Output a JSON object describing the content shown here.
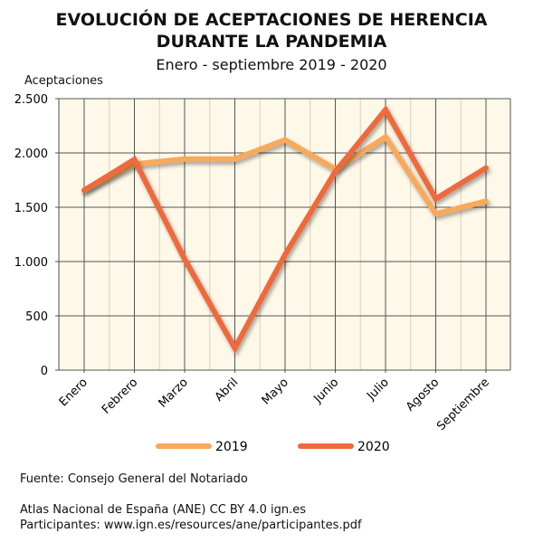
{
  "chart_data": {
    "type": "line",
    "title": "EVOLUCIÓN DE ACEPTACIONES DE HERENCIA DURANTE LA PANDEMIA",
    "title_lines": [
      "EVOLUCIÓN DE ACEPTACIONES DE HERENCIA",
      "DURANTE LA PANDEMIA"
    ],
    "subtitle": "Enero - septiembre 2019 - 2020",
    "ylabel": "Aceptaciones",
    "xlabel": "",
    "categories": [
      "Enero",
      "Febrero",
      "Marzo",
      "Abril",
      "Mayo",
      "Junio",
      "Julio",
      "Agosto",
      "Septiembre"
    ],
    "ylim": [
      0,
      2500
    ],
    "yticks": [
      0,
      500,
      1000,
      1500,
      2000,
      2500
    ],
    "ytick_labels": [
      "0",
      "500",
      "1.000",
      "1.500",
      "2.000",
      "2.500"
    ],
    "grid": true,
    "legend_position": "bottom",
    "background_color": "#fef8e8",
    "series": [
      {
        "name": "2019",
        "color": "#f8a95a",
        "values": [
          1660,
          1897,
          1944,
          1944,
          2120,
          1850,
          2147,
          1439,
          1556
        ]
      },
      {
        "name": "2020",
        "color": "#ee6a3c",
        "values": [
          1656,
          1939,
          1022,
          203,
          1064,
          1828,
          2397,
          1578,
          1861
        ]
      }
    ]
  },
  "footer": {
    "source": "Fuente: Consejo General del Notariado",
    "credit": "Atlas Nacional de España (ANE) CC BY 4.0 ign.es",
    "participants": "Participantes: www.ign.es/resources/ane/participantes.pdf"
  }
}
